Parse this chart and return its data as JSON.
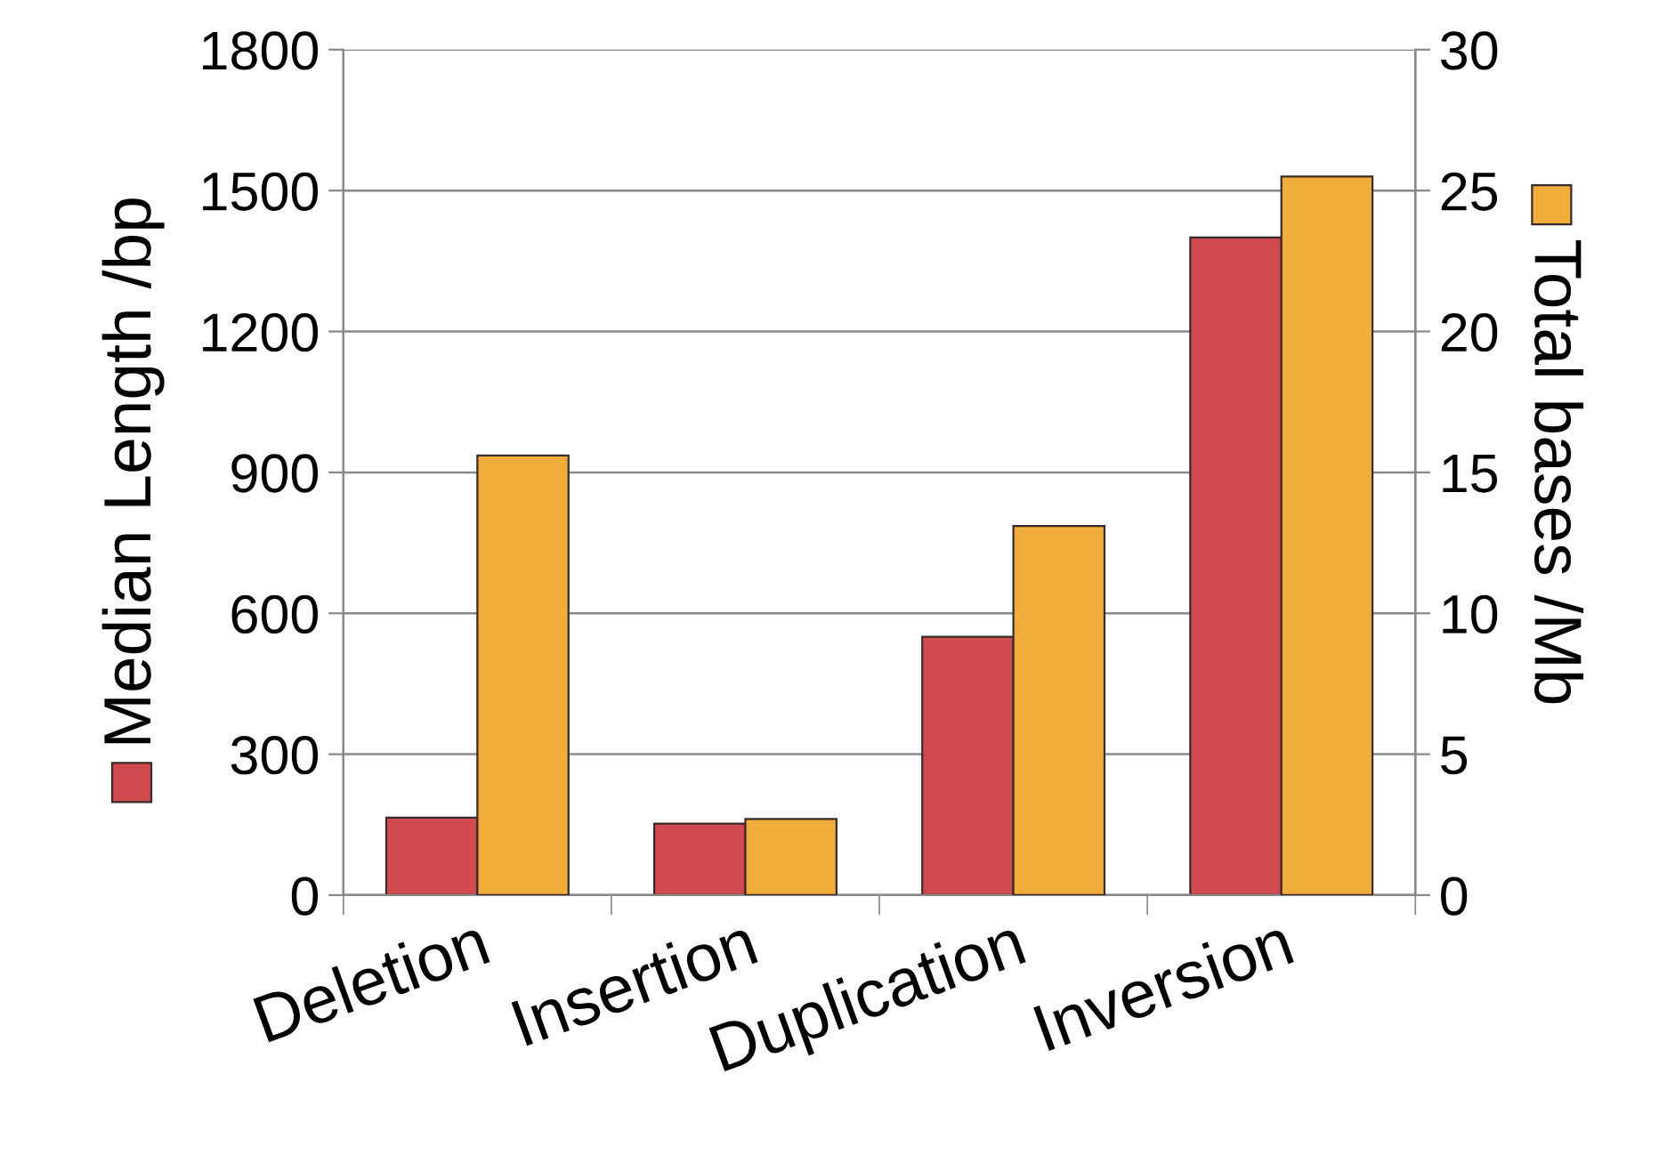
{
  "chart_data": {
    "type": "bar",
    "categories": [
      "Deletion",
      "Insertion",
      "Duplication",
      "Inversion"
    ],
    "ylabel": "Median Length /bp",
    "y2label": "Total bases /Mb",
    "series": [
      {
        "color": "#d04a4f",
        "values": [
          165,
          152,
          550,
          1400
        ]
      },
      {
        "color": "#f0ad3c",
        "axis": "y2",
        "values": [
          15.6,
          2.7,
          13.1,
          25.5
        ]
      }
    ],
    "ylim": [
      0,
      1800
    ],
    "yticks": [
      0,
      300,
      600,
      900,
      1200,
      1500,
      1800
    ],
    "y2lim": [
      0,
      30
    ],
    "y2ticks": [
      0,
      5,
      10,
      15,
      20,
      25,
      30
    ],
    "grid": "y",
    "legend": false
  }
}
